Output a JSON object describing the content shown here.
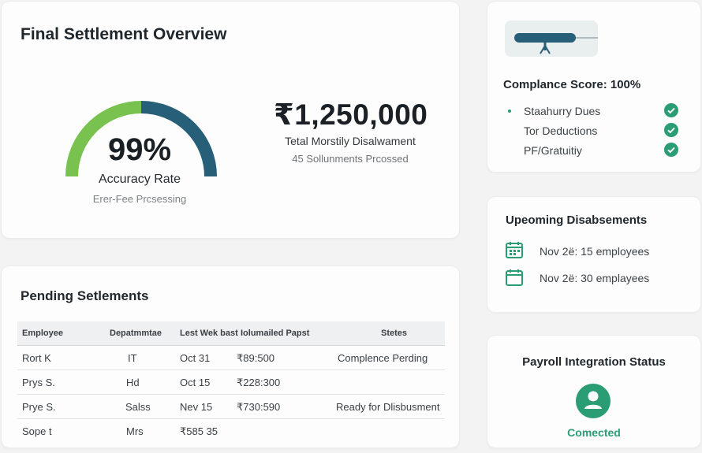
{
  "overview": {
    "title": "Final Settlement Overview",
    "gauge": {
      "percent_text": "99%",
      "value_fraction": 0.99,
      "label": "Accuracy Rate",
      "sublabel": "Erer-Fee Prcsessing",
      "colors": {
        "left": "#79c24f",
        "right": "#275e78"
      }
    },
    "amount": "₹1,250,000",
    "amount_label": "Tetal Morstily Disalwament",
    "amount_sub": "45 Sollunments Prcossed"
  },
  "pending": {
    "title": "Pending Setlements",
    "columns": [
      "Employee",
      "Depatmmtae",
      "Lest Wek bast",
      "Iolumailed Papst",
      "Stetes"
    ],
    "rows": [
      {
        "employee": "Rort K",
        "department": "IT",
        "date": "Oct 31",
        "amount": "₹89:500",
        "status": "Complence Perding"
      },
      {
        "employee": "Prys S.",
        "department": "Hd",
        "date": "Oct 15",
        "amount": "₹228:300",
        "status": ""
      },
      {
        "employee": "Prye S.",
        "department": "Salss",
        "date": "Nev 15",
        "amount": "₹730:590",
        "status": "Ready for Dlisbusment"
      },
      {
        "employee": "Sope t",
        "department": "Mrs",
        "date": "₹585 35",
        "amount": "",
        "status": ""
      }
    ]
  },
  "compliance": {
    "title": "Complance Score: 100%",
    "items": [
      "Staahurry Dues",
      "Tor Deductions",
      "PF/Gratuitiy"
    ],
    "check_color": "#2a9d75",
    "icons": {
      "banner": "meeting-banner-icon",
      "check": "check-circle-icon"
    }
  },
  "upcoming": {
    "title": "Upeoming Disabsements",
    "items": [
      {
        "text": "Nov 2ë: 15 employees",
        "icon": "calendar-icon"
      },
      {
        "text": "Nov 2ë: 30 emplayees",
        "icon": "calendar-icon"
      }
    ]
  },
  "payroll": {
    "title": "Payroll Integration Status",
    "status": "Comected",
    "icon": "user-avatar-icon",
    "accent": "#2a9d75"
  }
}
